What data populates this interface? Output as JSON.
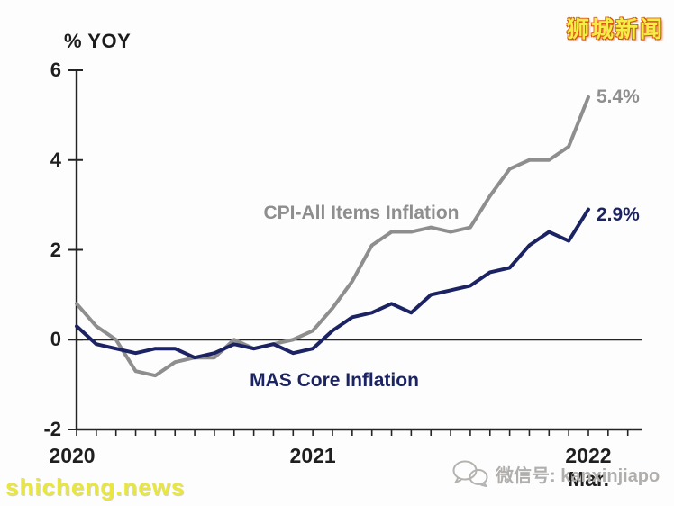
{
  "watermarks": {
    "site_name_cn": "狮城新闻",
    "site_url": "shicheng.news",
    "wechat_label": "微信号: kanxinjiapo"
  },
  "colors": {
    "cpi_line": "#8e8e8e",
    "core_line": "#1c2363",
    "axis": "#242424",
    "watermark_yellow": "#e9e73e",
    "watermark_red_outline": "#d85410",
    "wechat_gray": "#b1afad"
  },
  "chart_data": {
    "type": "line",
    "title": "% YOY",
    "ylabel": "% YOY",
    "xlabel": "",
    "grid": false,
    "legend": "inline-annotations",
    "ylim": [
      -2,
      6
    ],
    "yticks": [
      6,
      4,
      2,
      0,
      -2
    ],
    "xticks": [
      {
        "label": "2020",
        "month_index": 0
      },
      {
        "label": "2021",
        "month_index": 12
      },
      {
        "label": "2022 Mar.",
        "month_index": 26
      }
    ],
    "categories": [
      "Jan 2020",
      "Feb 2020",
      "Mar 2020",
      "Apr 2020",
      "May 2020",
      "Jun 2020",
      "Jul 2020",
      "Aug 2020",
      "Sep 2020",
      "Oct 2020",
      "Nov 2020",
      "Dec 2020",
      "Jan 2021",
      "Feb 2021",
      "Mar 2021",
      "Apr 2021",
      "May 2021",
      "Jun 2021",
      "Jul 2021",
      "Aug 2021",
      "Sep 2021",
      "Oct 2021",
      "Nov 2021",
      "Dec 2021",
      "Jan 2022",
      "Feb 2022",
      "Mar 2022"
    ],
    "series": [
      {
        "name": "CPI-All Items Inflation",
        "color": "#8e8e8e",
        "end_label": "5.4%",
        "values": [
          0.8,
          0.3,
          0.0,
          -0.7,
          -0.8,
          -0.5,
          -0.4,
          -0.4,
          0.0,
          -0.2,
          -0.1,
          0.0,
          0.2,
          0.7,
          1.3,
          2.1,
          2.4,
          2.4,
          2.5,
          2.4,
          2.5,
          3.2,
          3.8,
          4.0,
          4.0,
          4.3,
          5.4
        ]
      },
      {
        "name": "MAS Core Inflation",
        "color": "#1c2363",
        "end_label": "2.9%",
        "values": [
          0.3,
          -0.1,
          -0.2,
          -0.3,
          -0.2,
          -0.2,
          -0.4,
          -0.3,
          -0.1,
          -0.2,
          -0.1,
          -0.3,
          -0.2,
          0.2,
          0.5,
          0.6,
          0.8,
          0.6,
          1.0,
          1.1,
          1.2,
          1.5,
          1.6,
          2.1,
          2.4,
          2.2,
          2.9
        ]
      }
    ]
  }
}
